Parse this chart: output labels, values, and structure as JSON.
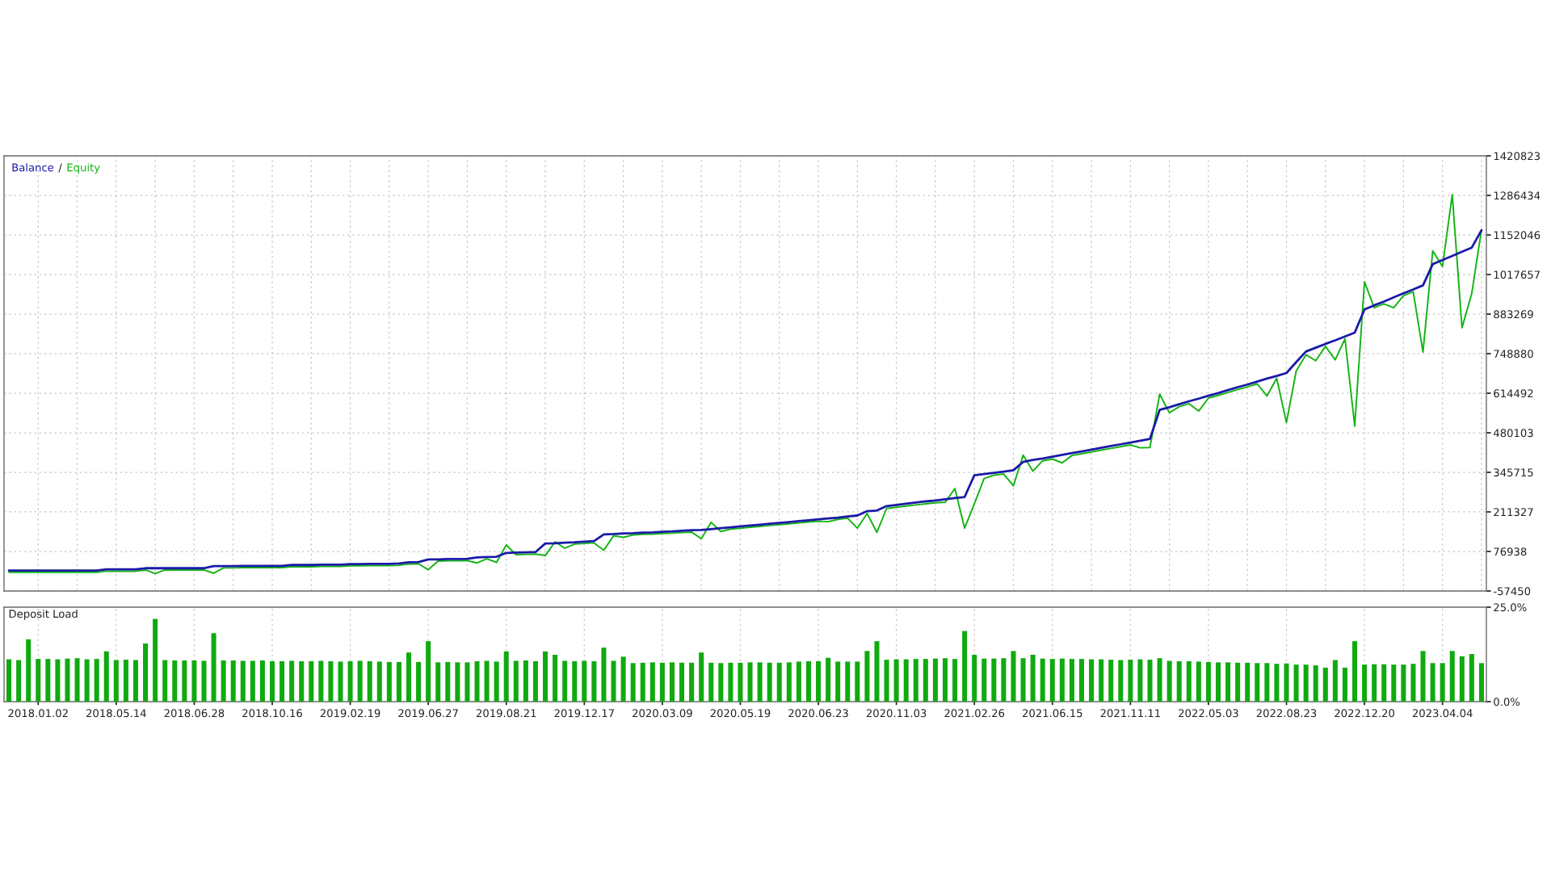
{
  "chart_data": [
    {
      "type": "line",
      "tick_labels": "y",
      "grid": true,
      "legend": "top left",
      "annotations": [
        "/"
      ],
      "categories": [
        null,
        null,
        null,
        "2018.01.02",
        null,
        null,
        null,
        null,
        null,
        null,
        null,
        "2018.05.14",
        null,
        null,
        null,
        null,
        null,
        null,
        null,
        "2018.06.28",
        null,
        null,
        null,
        null,
        null,
        null,
        null,
        "2018.10.16",
        null,
        null,
        null,
        null,
        null,
        null,
        null,
        "2019.02.19",
        null,
        null,
        null,
        null,
        null,
        null,
        null,
        "2019.06.27",
        null,
        null,
        null,
        null,
        null,
        null,
        null,
        "2019.08.21",
        null,
        null,
        null,
        null,
        null,
        null,
        null,
        "2019.12.17",
        null,
        null,
        null,
        null,
        null,
        null,
        null,
        "2020.03.09",
        null,
        null,
        null,
        null,
        null,
        null,
        null,
        "2020.05.19",
        null,
        null,
        null,
        null,
        null,
        null,
        null,
        "2020.06.23",
        null,
        null,
        null,
        null,
        null,
        null,
        null,
        "2020.11.03",
        null,
        null,
        null,
        null,
        null,
        null,
        null,
        "2021.02.26",
        null,
        null,
        null,
        null,
        null,
        null,
        null,
        "2021.06.15",
        null,
        null,
        null,
        null,
        null,
        null,
        null,
        "2021.11.11",
        null,
        null,
        null,
        null,
        null,
        null,
        null,
        "2022.05.03",
        null,
        null,
        null,
        null,
        null,
        null,
        null,
        "2022.08.23",
        null,
        null,
        null,
        null,
        null,
        null,
        null,
        "2022.12.20",
        null,
        null,
        null,
        null,
        null,
        null,
        null,
        "2023.04.04",
        null,
        null,
        null,
        null
      ],
      "series": [
        {
          "name": "Balance",
          "color": "#1a1aa8",
          "values": [
            12000,
            12000,
            12000,
            12000,
            12000,
            12000,
            12000,
            12000,
            12000,
            12000,
            16000,
            16000,
            16000,
            16000,
            20000,
            20000,
            20000,
            20000,
            20000,
            20000,
            20000,
            27000,
            27000,
            27000,
            28000,
            28000,
            28000,
            28000,
            28000,
            31000,
            31000,
            31000,
            32000,
            32000,
            32000,
            34000,
            34000,
            35000,
            35000,
            35000,
            36000,
            40000,
            41000,
            50000,
            50000,
            51000,
            51000,
            52000,
            57000,
            58000,
            59000,
            72000,
            73000,
            74000,
            75000,
            104000,
            105000,
            107000,
            108000,
            110000,
            112000,
            135000,
            136000,
            138000,
            139000,
            141000,
            142000,
            144000,
            145000,
            147000,
            149000,
            150000,
            153000,
            156000,
            159000,
            162000,
            165000,
            168000,
            171000,
            174000,
            177000,
            180000,
            183000,
            186000,
            189000,
            192000,
            196000,
            199000,
            214000,
            216000,
            231000,
            235000,
            239000,
            243000,
            247000,
            250000,
            254000,
            258000,
            262000,
            336000,
            340000,
            344000,
            348000,
            353000,
            381000,
            388000,
            393000,
            399000,
            405000,
            411000,
            417000,
            423000,
            429000,
            435000,
            441000,
            447000,
            453000,
            459000,
            558000,
            567000,
            577000,
            587000,
            596000,
            606000,
            615000,
            625000,
            635000,
            644000,
            654000,
            664000,
            673000,
            683000,
            720000,
            756000,
            769000,
            782000,
            794000,
            807000,
            820000,
            899000,
            913000,
            926000,
            940000,
            954000,
            967000,
            981000,
            1053000,
            1067000,
            1081000,
            1095000,
            1109000,
            1168000
          ]
        },
        {
          "name": "Equity",
          "color": "#14b414",
          "values": [
            6000,
            6000,
            6000,
            6000,
            6000,
            6000,
            6000,
            6000,
            6000,
            6000,
            10000,
            10000,
            10000,
            10000,
            14000,
            2000,
            14000,
            14000,
            14000,
            14000,
            14000,
            3000,
            21000,
            21000,
            22000,
            22000,
            22000,
            22000,
            22000,
            25000,
            25000,
            25000,
            26000,
            26000,
            26000,
            28000,
            28000,
            29000,
            29000,
            29000,
            30000,
            34000,
            35000,
            15000,
            44000,
            45000,
            45000,
            46000,
            38000,
            52000,
            40000,
            99000,
            66000,
            67000,
            68000,
            63000,
            110000,
            88000,
            102000,
            104000,
            106000,
            81000,
            130000,
            125000,
            133000,
            135000,
            136000,
            138000,
            139000,
            141000,
            143000,
            120000,
            176000,
            145000,
            153000,
            156000,
            159000,
            162000,
            165000,
            168000,
            171000,
            174000,
            177000,
            180000,
            178000,
            186000,
            190000,
            156000,
            206000,
            142000,
            223000,
            227000,
            231000,
            235000,
            239000,
            242000,
            244000,
            291000,
            156000,
            239000,
            325000,
            336000,
            340000,
            300000,
            404000,
            350000,
            385000,
            391000,
            378000,
            403000,
            409000,
            415000,
            421000,
            427000,
            433000,
            439000,
            429000,
            430000,
            611000,
            548000,
            569000,
            579000,
            554000,
            598000,
            607000,
            617000,
            627000,
            636000,
            646000,
            605000,
            665000,
            515000,
            690000,
            745000,
            725000,
            774000,
            728000,
            799000,
            503000,
            993000,
            905000,
            918000,
            905000,
            946000,
            959000,
            754000,
            1098000,
            1045000,
            1289000,
            837000,
            953000,
            1170000
          ]
        }
      ],
      "ylim": [
        -57450,
        1420823
      ],
      "yticks": [
        -57450,
        76938,
        211327,
        345715,
        480103,
        614492,
        748880,
        883269,
        1017657,
        1152046,
        1286434,
        1420823
      ]
    },
    {
      "type": "bar",
      "title": "Deposit Load",
      "grid": "x",
      "color": "#10aa10",
      "categories": [
        null,
        null,
        null,
        "2018.01.02",
        null,
        null,
        null,
        null,
        null,
        null,
        null,
        "2018.05.14",
        null,
        null,
        null,
        null,
        null,
        null,
        null,
        "2018.06.28",
        null,
        null,
        null,
        null,
        null,
        null,
        null,
        "2018.10.16",
        null,
        null,
        null,
        null,
        null,
        null,
        null,
        "2019.02.19",
        null,
        null,
        null,
        null,
        null,
        null,
        null,
        "2019.06.27",
        null,
        null,
        null,
        null,
        null,
        null,
        null,
        "2019.08.21",
        null,
        null,
        null,
        null,
        null,
        null,
        null,
        "2019.12.17",
        null,
        null,
        null,
        null,
        null,
        null,
        null,
        "2020.03.09",
        null,
        null,
        null,
        null,
        null,
        null,
        null,
        "2020.05.19",
        null,
        null,
        null,
        null,
        null,
        null,
        null,
        "2020.06.23",
        null,
        null,
        null,
        null,
        null,
        null,
        null,
        "2020.11.03",
        null,
        null,
        null,
        null,
        null,
        null,
        null,
        "2021.02.26",
        null,
        null,
        null,
        null,
        null,
        null,
        null,
        "2021.06.15",
        null,
        null,
        null,
        null,
        null,
        null,
        null,
        "2021.11.11",
        null,
        null,
        null,
        null,
        null,
        null,
        null,
        "2022.05.03",
        null,
        null,
        null,
        null,
        null,
        null,
        null,
        "2022.08.23",
        null,
        null,
        null,
        null,
        null,
        null,
        null,
        "2022.12.20",
        null,
        null,
        null,
        null,
        null,
        null,
        null,
        "2023.04.04",
        null,
        null,
        null,
        null
      ],
      "values": [
        11.2,
        11.0,
        16.5,
        11.3,
        11.3,
        11.2,
        11.4,
        11.5,
        11.2,
        11.3,
        13.3,
        11.0,
        11.1,
        11.0,
        15.4,
        21.9,
        11.0,
        10.9,
        10.9,
        10.9,
        10.8,
        18.1,
        10.9,
        10.9,
        10.8,
        10.8,
        10.9,
        10.7,
        10.7,
        10.8,
        10.7,
        10.7,
        10.8,
        10.7,
        10.6,
        10.7,
        10.8,
        10.7,
        10.6,
        10.5,
        10.5,
        13.0,
        10.5,
        16.0,
        10.4,
        10.5,
        10.4,
        10.4,
        10.7,
        10.8,
        10.6,
        13.3,
        10.8,
        10.9,
        10.7,
        13.3,
        12.4,
        10.8,
        10.7,
        10.8,
        10.7,
        14.3,
        10.8,
        11.9,
        10.2,
        10.3,
        10.4,
        10.3,
        10.4,
        10.3,
        10.3,
        13.0,
        10.3,
        10.2,
        10.3,
        10.3,
        10.4,
        10.4,
        10.3,
        10.3,
        10.4,
        10.6,
        10.7,
        10.7,
        11.6,
        10.6,
        10.6,
        10.6,
        13.4,
        16.0,
        11.1,
        11.2,
        11.2,
        11.3,
        11.3,
        11.4,
        11.5,
        11.3,
        18.7,
        12.4,
        11.4,
        11.4,
        11.5,
        13.4,
        11.5,
        12.4,
        11.4,
        11.3,
        11.4,
        11.3,
        11.3,
        11.2,
        11.2,
        11.1,
        11.0,
        11.1,
        11.2,
        11.1,
        11.5,
        10.8,
        10.7,
        10.7,
        10.6,
        10.5,
        10.4,
        10.4,
        10.3,
        10.3,
        10.2,
        10.2,
        10.0,
        10.1,
        9.8,
        9.8,
        9.6,
        9.0,
        11.0,
        9.0,
        16.0,
        9.8,
        9.9,
        9.9,
        9.8,
        9.8,
        10.0,
        13.4,
        10.2,
        10.2,
        13.4,
        12.0,
        12.6,
        10.2
      ],
      "ylim": [
        0,
        25
      ],
      "yticks": [
        {
          "value": 0,
          "label": "0.0%"
        },
        {
          "value": 25,
          "label": "25.0%"
        }
      ]
    }
  ]
}
